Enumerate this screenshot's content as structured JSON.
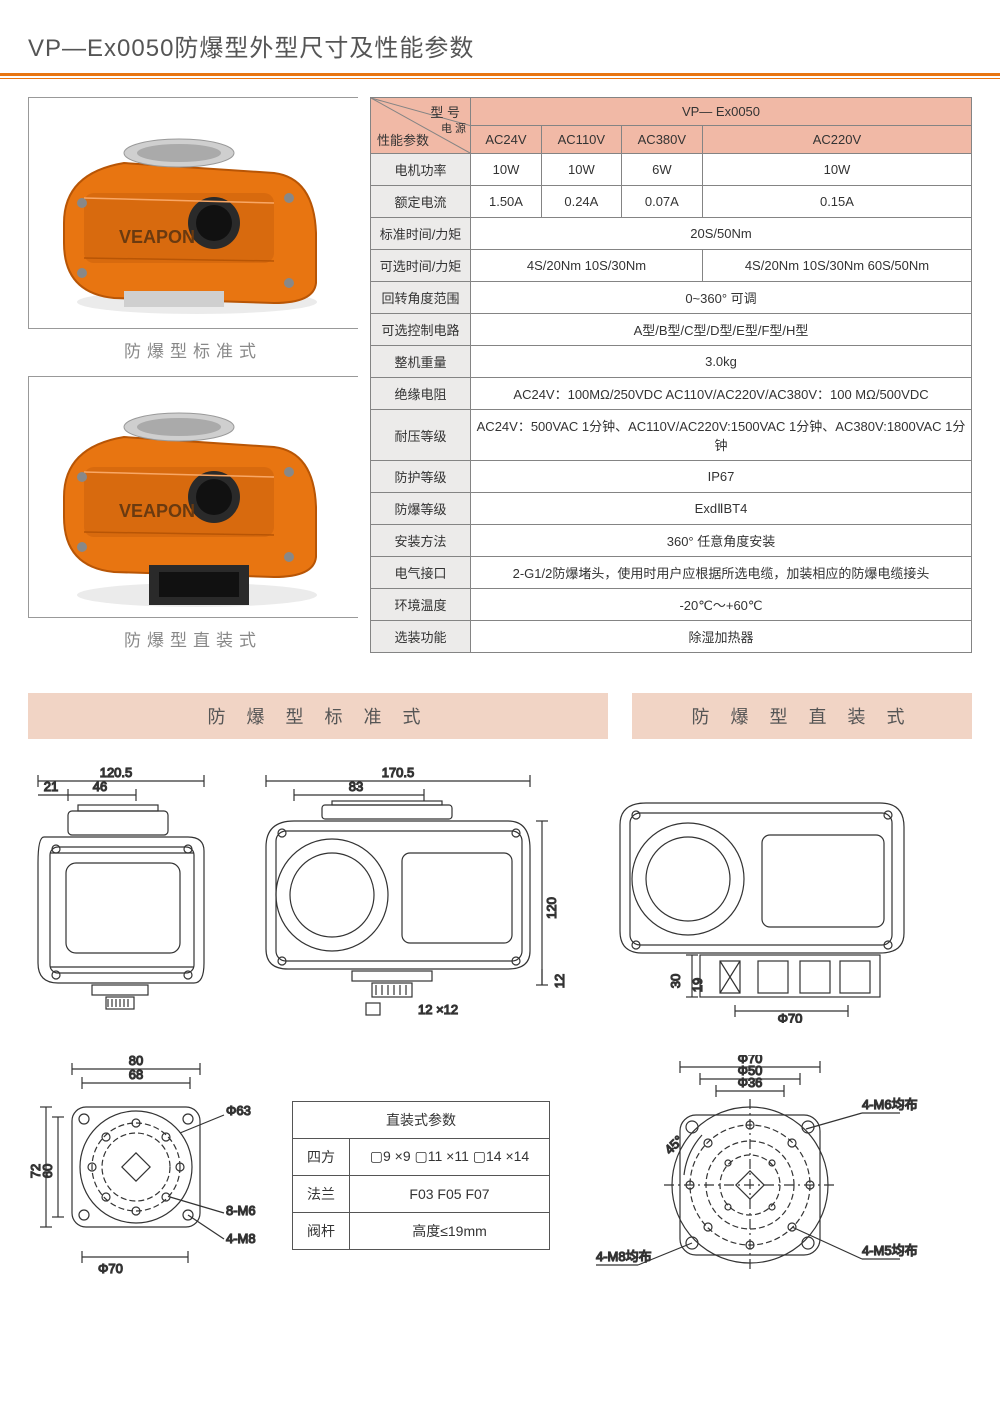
{
  "title": "VP—Ex0050防爆型外型尺寸及性能参数",
  "photos": {
    "brand_label": "VEAPON",
    "caption1": "防爆型标准式",
    "caption2": "防爆型直装式",
    "body_color": "#e87511",
    "body_shadow": "#b85505",
    "metal_color": "#cfcfcf",
    "dark_color": "#2a2a2a"
  },
  "spec_table": {
    "diag": {
      "top": "型 号",
      "mid": "电 源",
      "bot": "性能参数"
    },
    "model_header": "VP— Ex0050",
    "voltage_headers": [
      "AC24V",
      "AC110V",
      "AC380V",
      "AC220V"
    ],
    "rows": [
      {
        "label": "电机功率",
        "cells": [
          "10W",
          "10W",
          "6W",
          "10W"
        ]
      },
      {
        "label": "额定电流",
        "cells": [
          "1.50A",
          "0.24A",
          "0.07A",
          "0.15A"
        ]
      },
      {
        "label": "标准时间/力矩",
        "full": "20S/50Nm"
      },
      {
        "label": "可选时间/力矩",
        "split": [
          "4S/20Nm 10S/30Nm",
          "4S/20Nm 10S/30Nm 60S/50Nm"
        ]
      },
      {
        "label": "回转角度范围",
        "full": "0~360° 可调"
      },
      {
        "label": "可选控制电路",
        "full": "A型/B型/C型/D型/E型/F型/H型"
      },
      {
        "label": "整机重量",
        "full": "3.0kg"
      },
      {
        "label": "绝缘电阻",
        "full": "AC24V：100MΩ/250VDC   AC110V/AC220V/AC380V：100 MΩ/500VDC"
      },
      {
        "label": "耐压等级",
        "full": "AC24V：500VAC 1分钟、AC110V/AC220V:1500VAC 1分钟、AC380V:1800VAC 1分钟"
      },
      {
        "label": "防护等级",
        "full": "IP67"
      },
      {
        "label": "防爆等级",
        "full": "ExdⅡBT4"
      },
      {
        "label": "安装方法",
        "full": "360° 任意角度安装"
      },
      {
        "label": "电气接口",
        "full": "2-G1/2防爆堵头，使用时用户应根据所选电缆，加装相应的防爆电缆接头"
      },
      {
        "label": "环境温度",
        "full": "-20℃～+60℃"
      },
      {
        "label": "选装功能",
        "full": "除湿加热器"
      }
    ]
  },
  "section_headers": {
    "left": "防 爆 型 标 准 式",
    "right": "防 爆 型 直 装 式"
  },
  "drawings": {
    "view1": {
      "w": "120.5",
      "d21": "21",
      "d46": "46"
    },
    "view2": {
      "w": "170.5",
      "d83": "83",
      "h120": "120",
      "h12": "12",
      "sq": "12 ×12"
    },
    "view3": {
      "h30": "30",
      "h19": "19",
      "phi70": "Φ70"
    },
    "flange1": {
      "d80": "80",
      "d68": "68",
      "d72": "72",
      "d60": "60",
      "phi63": "Φ63",
      "m8_6": "8-M6",
      "m4_8": "4-M8",
      "phi70": "Φ70"
    },
    "flange2": {
      "phi70": "Φ70",
      "phi50": "Φ50",
      "phi36": "Φ36",
      "ang45": "45°",
      "m4_8": "4-M8均布",
      "m4_6": "4-M6均布",
      "m4_5": "4-M5均布"
    }
  },
  "mini_table": {
    "title": "直装式参数",
    "rows": [
      {
        "label": "四方",
        "val": "▢9 ×9   ▢11 ×11   ▢14 ×14"
      },
      {
        "label": "法兰",
        "val": "F03   F05   F07"
      },
      {
        "label": "阀杆",
        "val": "高度≤19mm"
      }
    ]
  },
  "colors": {
    "orange": "#e87511",
    "pink": "#f1b9a6",
    "section_bg": "#f1d4c5",
    "gray_bg": "#ecebea",
    "border": "#848484",
    "draw_stroke": "#333"
  }
}
